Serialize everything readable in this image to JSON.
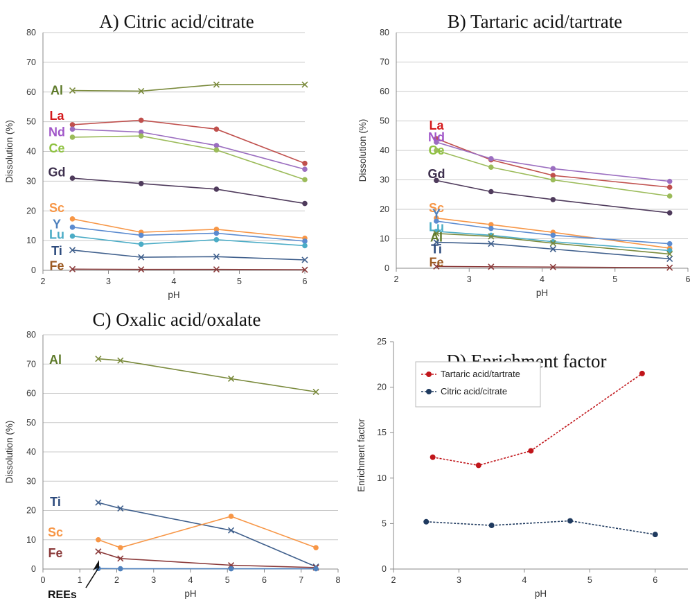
{
  "chart_data": [
    {
      "panel": "A",
      "type": "line",
      "title": "A) Citric acid/citrate",
      "xlabel": "pH",
      "ylabel": "Dissolution (%)",
      "xlim": [
        2,
        6
      ],
      "ylim": [
        0,
        80
      ],
      "xticks": [
        2,
        3,
        4,
        5,
        6
      ],
      "yticks": [
        0,
        10,
        20,
        30,
        40,
        50,
        60,
        70,
        80
      ],
      "grid": true,
      "series": [
        {
          "name": "Al",
          "color": "#7a8a3c",
          "label_color": "#5e7a2a",
          "marker": "x",
          "label_y": 60.5,
          "points": [
            [
              2.45,
              60.5
            ],
            [
              3.5,
              60.3
            ],
            [
              4.65,
              62.5
            ],
            [
              6.0,
              62.5
            ]
          ]
        },
        {
          "name": "La",
          "color": "#c0504d",
          "label_color": "#d4191c",
          "marker": "o",
          "label_y": 52,
          "points": [
            [
              2.45,
              49
            ],
            [
              3.5,
              50.5
            ],
            [
              4.65,
              47.5
            ],
            [
              6.0,
              36
            ]
          ]
        },
        {
          "name": "Nd",
          "color": "#9b6ec0",
          "label_color": "#a157c9",
          "marker": "o",
          "label_y": 46.5,
          "points": [
            [
              2.45,
              47.5
            ],
            [
              3.5,
              46.5
            ],
            [
              4.65,
              42
            ],
            [
              6.0,
              34
            ]
          ]
        },
        {
          "name": "Ce",
          "color": "#9bbb59",
          "label_color": "#8fc242",
          "marker": "o",
          "label_y": 41,
          "points": [
            [
              2.45,
              44.8
            ],
            [
              3.5,
              45.2
            ],
            [
              4.65,
              40.5
            ],
            [
              6.0,
              30.5
            ]
          ]
        },
        {
          "name": "Gd",
          "color": "#4f3b5c",
          "label_color": "#3d2f4d",
          "marker": "o",
          "label_y": 33,
          "points": [
            [
              2.45,
              31
            ],
            [
              3.5,
              29.2
            ],
            [
              4.65,
              27.3
            ],
            [
              6.0,
              22.5
            ]
          ]
        },
        {
          "name": "Sc",
          "color": "#f79646",
          "label_color": "#f79646",
          "marker": "o",
          "label_y": 21,
          "points": [
            [
              2.45,
              17.3
            ],
            [
              3.5,
              12.8
            ],
            [
              4.65,
              13.8
            ],
            [
              6.0,
              10.8
            ]
          ]
        },
        {
          "name": "Y",
          "color": "#5b8bd0",
          "label_color": "#4f81bd",
          "marker": "o",
          "label_y": 15.5,
          "points": [
            [
              2.45,
              14.5
            ],
            [
              3.5,
              11.8
            ],
            [
              4.65,
              12.5
            ],
            [
              6.0,
              9.8
            ]
          ]
        },
        {
          "name": "Lu",
          "color": "#4bacc6",
          "label_color": "#4bacc6",
          "marker": "o",
          "label_y": 12,
          "points": [
            [
              2.45,
              11.5
            ],
            [
              3.5,
              8.8
            ],
            [
              4.65,
              10.3
            ],
            [
              6.0,
              8.3
            ]
          ]
        },
        {
          "name": "Ti",
          "color": "#3f5f8c",
          "label_color": "#2c4a7c",
          "marker": "x",
          "label_y": 6.5,
          "points": [
            [
              2.45,
              6.8
            ],
            [
              3.5,
              4.4
            ],
            [
              4.65,
              4.6
            ],
            [
              6.0,
              3.5
            ]
          ]
        },
        {
          "name": "Fe",
          "color": "#8b3a3a",
          "label_color": "#9c5a22",
          "marker": "x",
          "label_y": 1.5,
          "points": [
            [
              2.45,
              0.4
            ],
            [
              3.5,
              0.3
            ],
            [
              4.65,
              0.3
            ],
            [
              6.0,
              0.2
            ]
          ]
        }
      ]
    },
    {
      "panel": "B",
      "type": "line",
      "title": "B) Tartaric acid/tartrate",
      "xlabel": "pH",
      "ylabel": "Dissolution (%)",
      "xlim": [
        2,
        6
      ],
      "ylim": [
        0,
        80
      ],
      "xticks": [
        2,
        3,
        4,
        5,
        6
      ],
      "yticks": [
        0,
        10,
        20,
        30,
        40,
        50,
        60,
        70,
        80
      ],
      "grid": true,
      "series": [
        {
          "name": "La",
          "color": "#c0504d",
          "label_color": "#d4191c",
          "marker": "o",
          "label_y": 48.5,
          "points": [
            [
              2.55,
              44
            ],
            [
              3.3,
              36.8
            ],
            [
              4.15,
              31.5
            ],
            [
              5.75,
              27.5
            ]
          ]
        },
        {
          "name": "Nd",
          "color": "#9b6ec0",
          "label_color": "#a157c9",
          "marker": "o",
          "label_y": 44.5,
          "points": [
            [
              2.55,
              42.8
            ],
            [
              3.3,
              37.2
            ],
            [
              4.15,
              33.8
            ],
            [
              5.75,
              29.5
            ]
          ]
        },
        {
          "name": "Ce",
          "color": "#9bbb59",
          "label_color": "#8fc242",
          "marker": "o",
          "label_y": 40,
          "points": [
            [
              2.55,
              40
            ],
            [
              3.3,
              34.3
            ],
            [
              4.15,
              30
            ],
            [
              5.75,
              24.5
            ]
          ]
        },
        {
          "name": "Gd",
          "color": "#4f3b5c",
          "label_color": "#3d2f4d",
          "marker": "o",
          "label_y": 32,
          "points": [
            [
              2.55,
              29.8
            ],
            [
              3.3,
              26
            ],
            [
              4.15,
              23.3
            ],
            [
              5.75,
              18.8
            ]
          ]
        },
        {
          "name": "Sc",
          "color": "#f79646",
          "label_color": "#f79646",
          "marker": "o",
          "label_y": 20.5,
          "points": [
            [
              2.55,
              17
            ],
            [
              3.3,
              14.8
            ],
            [
              4.15,
              12.2
            ],
            [
              5.75,
              6.8
            ]
          ]
        },
        {
          "name": "Y",
          "color": "#5b8bd0",
          "label_color": "#4f81bd",
          "marker": "o",
          "label_y": 18.5,
          "points": [
            [
              2.55,
              16
            ],
            [
              3.3,
              13.5
            ],
            [
              4.15,
              11.2
            ],
            [
              5.75,
              8.3
            ]
          ]
        },
        {
          "name": "Lu",
          "color": "#4bacc6",
          "label_color": "#4bacc6",
          "marker": "o",
          "label_y": 14,
          "points": [
            [
              2.55,
              12.5
            ],
            [
              3.3,
              11.2
            ],
            [
              4.15,
              9
            ],
            [
              5.75,
              6
            ]
          ]
        },
        {
          "name": "Al",
          "color": "#7a8a3c",
          "label_color": "#5e7a2a",
          "marker": "x",
          "label_y": 10.5,
          "points": [
            [
              2.55,
              11.8
            ],
            [
              3.3,
              10.8
            ],
            [
              4.15,
              8.5
            ],
            [
              5.75,
              4.8
            ]
          ]
        },
        {
          "name": "Ti",
          "color": "#3f5f8c",
          "label_color": "#2c4a7c",
          "marker": "x",
          "label_y": 6.5,
          "points": [
            [
              2.55,
              8.8
            ],
            [
              3.3,
              8.3
            ],
            [
              4.15,
              6.5
            ],
            [
              5.75,
              3.2
            ]
          ]
        },
        {
          "name": "Fe",
          "color": "#8b3a3a",
          "label_color": "#9c5a22",
          "marker": "x",
          "label_y": 2,
          "points": [
            [
              2.55,
              0.6
            ],
            [
              3.3,
              0.5
            ],
            [
              4.15,
              0.4
            ],
            [
              5.75,
              0.2
            ]
          ]
        }
      ]
    },
    {
      "panel": "C",
      "type": "line",
      "title": "C) Oxalic acid/oxalate",
      "xlabel": "pH",
      "ylabel": "Dissolution (%)",
      "xlim": [
        0,
        8
      ],
      "ylim": [
        0,
        80
      ],
      "xticks": [
        0,
        1,
        2,
        3,
        4,
        5,
        6,
        7,
        8
      ],
      "yticks": [
        0,
        10,
        20,
        30,
        40,
        50,
        60,
        70,
        80
      ],
      "grid": true,
      "series": [
        {
          "name": "Al",
          "color": "#7a8a3c",
          "label_color": "#5e7a2a",
          "marker": "x",
          "label_y": 71.5,
          "points": [
            [
              1.5,
              71.8
            ],
            [
              2.1,
              71.2
            ],
            [
              5.1,
              65
            ],
            [
              7.4,
              60.5
            ]
          ]
        },
        {
          "name": "Ti",
          "color": "#3f5f8c",
          "label_color": "#2c4a7c",
          "marker": "x",
          "label_y": 23,
          "points": [
            [
              1.5,
              22.7
            ],
            [
              2.1,
              20.7
            ],
            [
              5.1,
              13.2
            ],
            [
              7.4,
              0.8
            ]
          ]
        },
        {
          "name": "Sc",
          "color": "#f79646",
          "label_color": "#f79646",
          "marker": "o",
          "label_y": 12.5,
          "points": [
            [
              1.5,
              10
            ],
            [
              2.1,
              7.3
            ],
            [
              5.1,
              18
            ],
            [
              7.4,
              7.3
            ]
          ]
        },
        {
          "name": "Fe",
          "color": "#8b3a3a",
          "label_color": "#8b3a3a",
          "marker": "x",
          "label_y": 5.5,
          "points": [
            [
              1.5,
              6
            ],
            [
              2.1,
              3.6
            ],
            [
              5.1,
              1.3
            ],
            [
              7.4,
              0.5
            ]
          ]
        },
        {
          "name": "REEs",
          "color": "#4f81bd",
          "label_color": "#4f81bd",
          "marker": "o",
          "points": [
            [
              1.5,
              0.2
            ],
            [
              2.1,
              0.1
            ],
            [
              5.1,
              0.1
            ],
            [
              7.4,
              0.1
            ]
          ]
        }
      ],
      "annotation": "REEs"
    },
    {
      "panel": "D",
      "type": "line",
      "title": "D) Enrichment factor",
      "xlabel": "pH",
      "ylabel": "Enrichment factor",
      "xlim": [
        2,
        6.5
      ],
      "ylim": [
        0,
        25
      ],
      "xticks": [
        2,
        3,
        4,
        5,
        6
      ],
      "yticks": [
        0,
        5,
        10,
        15,
        20,
        25
      ],
      "grid": false,
      "legend": "upper-left",
      "series": [
        {
          "name": "Tartaric acid/tartrate",
          "color": "#c0151a",
          "marker": "o",
          "points": [
            [
              2.6,
              12.3
            ],
            [
              3.3,
              11.4
            ],
            [
              4.1,
              13
            ],
            [
              5.8,
              21.5
            ]
          ]
        },
        {
          "name": "Citric acid/citrate",
          "color": "#1f3a5f",
          "marker": "o",
          "points": [
            [
              2.5,
              5.2
            ],
            [
              3.5,
              4.8
            ],
            [
              4.7,
              5.3
            ],
            [
              6.0,
              3.8
            ]
          ]
        }
      ]
    }
  ]
}
